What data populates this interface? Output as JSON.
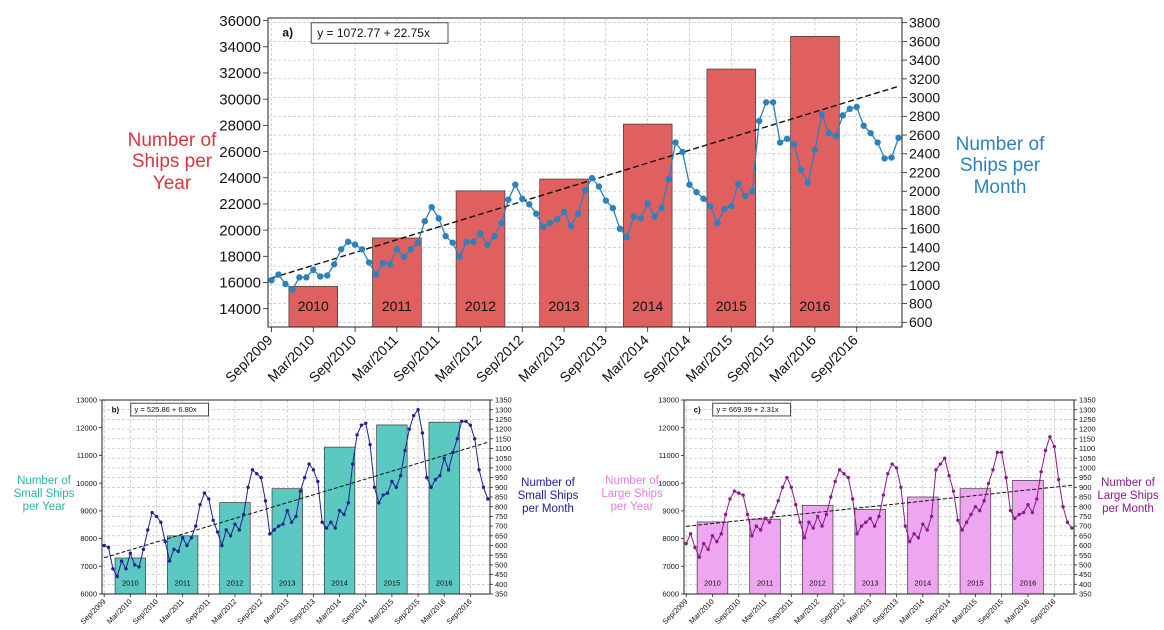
{
  "figure": {
    "charts": [
      {
        "id": "a",
        "panel_label": "a)",
        "equation": "y = 1072.77 + 22.75x",
        "left_label": "Number of\nShips per\nYear",
        "right_label": "Number of\nShips per\nMonth",
        "left_color": "#d9373f",
        "right_color": "#2d82bd"
      },
      {
        "id": "b",
        "panel_label": "b)",
        "equation": "y = 525.86 + 6.80x",
        "left_label": "Number of\nSmall Ships\nper Year",
        "right_label": "Number of\nSmall Ships\nper Month",
        "left_color": "#2bb3a8",
        "right_color": "#1f2290"
      },
      {
        "id": "c",
        "panel_label": "c)",
        "equation": "y = 669.39 + 2.31x",
        "left_label": "Number of\nLarge Ships\nper Year",
        "right_label": "Number of\nLarge Ships\nper Month",
        "left_color": "#e27fe4",
        "right_color": "#8a1a8a"
      }
    ]
  },
  "chart_data": [
    {
      "type": "bar+line",
      "panel": "a)",
      "equation_label": "y = 1072.77 + 22.75x",
      "bar_series": {
        "name": "Number of Ships per Year",
        "color": "#e06060",
        "categories": [
          "2010",
          "2011",
          "2012",
          "2013",
          "2014",
          "2015",
          "2016"
        ],
        "values": [
          15700,
          19400,
          23000,
          23900,
          28100,
          32300,
          34800
        ]
      },
      "line_series": {
        "name": "Number of Ships per Month",
        "color": "#2d82bd",
        "month_index_start": 0,
        "start_month": "Sep/2009",
        "values": [
          1050,
          1110,
          1010,
          950,
          1080,
          1080,
          1160,
          1090,
          1100,
          1220,
          1380,
          1460,
          1430,
          1380,
          1240,
          1110,
          1230,
          1220,
          1380,
          1300,
          1380,
          1450,
          1680,
          1830,
          1710,
          1520,
          1450,
          1300,
          1460,
          1460,
          1550,
          1430,
          1520,
          1660,
          1910,
          2070,
          1920,
          1860,
          1760,
          1620,
          1660,
          1700,
          1780,
          1630,
          1760,
          2010,
          2140,
          2050,
          1900,
          1820,
          1600,
          1510,
          1730,
          1710,
          1870,
          1730,
          1820,
          2130,
          2520,
          2420,
          2070,
          1990,
          1920,
          1840,
          1660,
          1810,
          1840,
          2080,
          1950,
          2000,
          2750,
          2950,
          2950,
          2520,
          2560,
          2500,
          2230,
          2090,
          2440,
          2820,
          2620,
          2590,
          2810,
          2880,
          2900,
          2700,
          2620,
          2520,
          2350,
          2360,
          2570
        ],
        "trend": {
          "intercept": 1072.77,
          "slope": 22.75
        }
      },
      "x_tick_labels": [
        "Sep/2009",
        "Mar/2010",
        "Sep/2010",
        "Mar/2011",
        "Sep/2011",
        "Mar/2012",
        "Sep/2012",
        "Mar/2013",
        "Sep/2013",
        "Mar/2014",
        "Sep/2014",
        "Mar/2015",
        "Sep/2015",
        "Mar/2016",
        "Sep/2016"
      ],
      "y_left": {
        "label": "Number of Ships per Year",
        "min": 12600,
        "max": 36200,
        "ticks": [
          14000,
          16000,
          18000,
          20000,
          22000,
          24000,
          26000,
          28000,
          30000,
          32000,
          34000,
          36000
        ]
      },
      "y_right": {
        "label": "Number of Ships per Month",
        "min": 550,
        "max": 3850,
        "ticks": [
          600,
          800,
          1000,
          1200,
          1400,
          1600,
          1800,
          2000,
          2200,
          2400,
          2600,
          2800,
          3000,
          3200,
          3400,
          3600,
          3800
        ]
      },
      "grid": true
    },
    {
      "type": "bar+line",
      "panel": "b)",
      "equation_label": "y = 525.86 + 6.80x",
      "bar_series": {
        "name": "Number of Small Ships per Year",
        "color": "#5cc8c2",
        "categories": [
          "2010",
          "2011",
          "2012",
          "2013",
          "2014",
          "2015",
          "2016"
        ],
        "values": [
          7300,
          8100,
          9300,
          9800,
          11300,
          12100,
          12200
        ]
      },
      "line_series": {
        "name": "Number of Small Ships per Month",
        "color": "#1f2290",
        "start_month": "Sep/2009",
        "values": [
          600,
          590,
          480,
          440,
          520,
          480,
          560,
          500,
          490,
          580,
          680,
          770,
          750,
          720,
          620,
          520,
          580,
          570,
          640,
          600,
          640,
          700,
          810,
          870,
          840,
          730,
          670,
          600,
          680,
          650,
          710,
          680,
          760,
          900,
          990,
          970,
          950,
          830,
          660,
          680,
          700,
          710,
          780,
          720,
          750,
          880,
          950,
          1020,
          990,
          930,
          720,
          690,
          720,
          690,
          780,
          760,
          820,
          1020,
          1170,
          1220,
          1230,
          1120,
          900,
          820,
          860,
          870,
          930,
          900,
          960,
          1090,
          1200,
          1270,
          1300,
          1180,
          950,
          900,
          940,
          960,
          1050,
          990,
          1080,
          1150,
          1240,
          1240,
          1220,
          1150,
          990,
          900,
          840
        ]
      },
      "x_tick_labels": [
        "Sep/2009",
        "Mar/2010",
        "Sep/2010",
        "Mar/2011",
        "Sep/2011",
        "Mar/2012",
        "Sep/2012",
        "Mar/2013",
        "Sep/2013",
        "Mar/2014",
        "Sep/2014",
        "Mar/2015",
        "Sep/2015",
        "Mar/2016",
        "Sep/2016"
      ],
      "y_left": {
        "min": 6000,
        "max": 13000,
        "ticks": [
          6000,
          7000,
          8000,
          9000,
          10000,
          11000,
          12000,
          13000
        ]
      },
      "y_right": {
        "min": 350,
        "max": 1350,
        "ticks": [
          350,
          400,
          450,
          500,
          550,
          600,
          650,
          700,
          750,
          800,
          850,
          900,
          950,
          1000,
          1050,
          1100,
          1150,
          1200,
          1250,
          1300,
          1350
        ]
      },
      "grid": true
    },
    {
      "type": "bar+line",
      "panel": "c)",
      "equation_label": "y = 669.39 + 2.31x",
      "bar_series": {
        "name": "Number of Large Ships per Year",
        "color": "#efa6f0",
        "categories": [
          "2010",
          "2011",
          "2012",
          "2013",
          "2014",
          "2015",
          "2016"
        ],
        "values": [
          8600,
          8700,
          9200,
          9050,
          9500,
          9800,
          10100
        ]
      },
      "line_series": {
        "name": "Number of Large Ships per Month",
        "color": "#8a1a8a",
        "start_month": "Sep/2009",
        "values": [
          610,
          660,
          590,
          540,
          610,
          580,
          650,
          620,
          660,
          760,
          840,
          880,
          870,
          860,
          760,
          650,
          700,
          680,
          740,
          720,
          770,
          830,
          900,
          950,
          900,
          810,
          720,
          640,
          720,
          690,
          750,
          700,
          760,
          850,
          930,
          990,
          970,
          950,
          840,
          660,
          700,
          720,
          740,
          700,
          750,
          860,
          970,
          1020,
          1000,
          900,
          700,
          620,
          660,
          640,
          710,
          680,
          750,
          990,
          1020,
          1050,
          960,
          880,
          730,
          680,
          720,
          760,
          800,
          780,
          830,
          920,
          990,
          1080,
          1080,
          950,
          780,
          740,
          760,
          770,
          810,
          770,
          840,
          980,
          1090,
          1160,
          1110,
          940,
          800,
          720,
          690
        ]
      },
      "x_tick_labels": [
        "Sep/2009",
        "Mar/2010",
        "Sep/2010",
        "Mar/2011",
        "Sep/2011",
        "Mar/2012",
        "Sep/2012",
        "Mar/2013",
        "Sep/2013",
        "Mar/2014",
        "Sep/2014",
        "Mar/2015",
        "Sep/2015",
        "Mar/2016",
        "Sep/2016"
      ],
      "y_left": {
        "min": 6000,
        "max": 13000,
        "ticks": [
          6000,
          7000,
          8000,
          9000,
          10000,
          11000,
          12000,
          13000
        ]
      },
      "y_right": {
        "min": 350,
        "max": 1350,
        "ticks": [
          350,
          400,
          450,
          500,
          550,
          600,
          650,
          700,
          750,
          800,
          850,
          900,
          950,
          1000,
          1050,
          1100,
          1150,
          1200,
          1250,
          1300,
          1350
        ]
      },
      "grid": true
    }
  ]
}
